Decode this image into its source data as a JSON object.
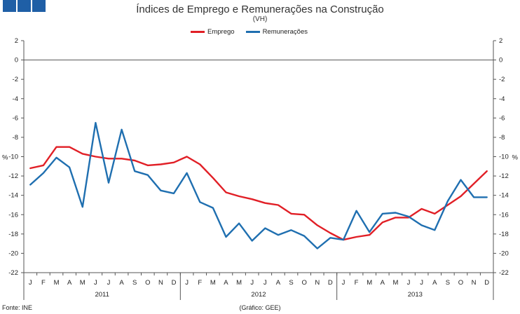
{
  "header": {
    "logo_icon": "logo-squares-icon",
    "brand_color": "#1f5fa6"
  },
  "footer": {
    "source": "Fonte: INE",
    "credit": "(Gráfico: GEE)"
  },
  "chart_data": {
    "type": "line",
    "title": "Índices de Emprego e Remunerações na Construção",
    "subtitle": "(VH)",
    "ylabel_left": "%",
    "ylabel_right": "%",
    "ylim": [
      -22,
      2
    ],
    "yticks": [
      2,
      0,
      -2,
      -4,
      -6,
      -8,
      -10,
      -12,
      -14,
      -16,
      -18,
      -20,
      -22
    ],
    "ytick_labels_left": [
      "2",
      "0",
      "-2",
      "-4",
      "-6",
      "-8",
      "-10",
      "-12",
      "-14",
      "-16",
      "-18",
      "-20",
      "-22"
    ],
    "ytick_labels_right": [
      "2",
      "0",
      "-2",
      "-4",
      "-6",
      "-8",
      "-10",
      "-12",
      "-14",
      "-16",
      "-18",
      "-20",
      "-22"
    ],
    "categories": [
      "J",
      "F",
      "M",
      "A",
      "M",
      "J",
      "J",
      "A",
      "S",
      "O",
      "N",
      "D",
      "J",
      "F",
      "M",
      "A",
      "M",
      "J",
      "J",
      "A",
      "S",
      "O",
      "N",
      "D",
      "J",
      "F",
      "M",
      "A",
      "M",
      "J",
      "J",
      "A",
      "S",
      "O",
      "N",
      "D"
    ],
    "years": [
      {
        "label": "2011",
        "start": 0,
        "count": 12
      },
      {
        "label": "2012",
        "start": 12,
        "count": 12
      },
      {
        "label": "2013",
        "start": 24,
        "count": 12
      }
    ],
    "legend_position": "top-center",
    "series": [
      {
        "name": "Emprego",
        "color": "#e11f26",
        "values": [
          -11.2,
          -10.9,
          -9.0,
          -9.0,
          -9.7,
          -10.0,
          -10.2,
          -10.2,
          -10.4,
          -10.9,
          -10.8,
          -10.6,
          -10.0,
          -10.8,
          -12.2,
          -13.7,
          -14.1,
          -14.4,
          -14.8,
          -15.0,
          -15.9,
          -16.0,
          -17.1,
          -17.9,
          -18.6,
          -18.3,
          -18.1,
          -16.8,
          -16.3,
          -16.3,
          -15.4,
          -15.9,
          -15.0,
          -14.1,
          -12.8,
          -11.5
        ]
      },
      {
        "name": "Remunerações",
        "color": "#1f6fb0",
        "values": [
          -12.9,
          -11.7,
          -10.1,
          -11.1,
          -15.2,
          -6.5,
          -12.7,
          -7.2,
          -11.5,
          -11.9,
          -13.5,
          -13.8,
          -11.7,
          -14.7,
          -15.3,
          -18.3,
          -16.9,
          -18.7,
          -17.4,
          -18.1,
          -17.6,
          -18.2,
          -19.5,
          -18.4,
          -18.6,
          -15.6,
          -17.8,
          -15.9,
          -15.8,
          -16.2,
          -17.1,
          -17.6,
          -14.6,
          -12.4,
          -14.2,
          -14.2
        ]
      }
    ]
  }
}
